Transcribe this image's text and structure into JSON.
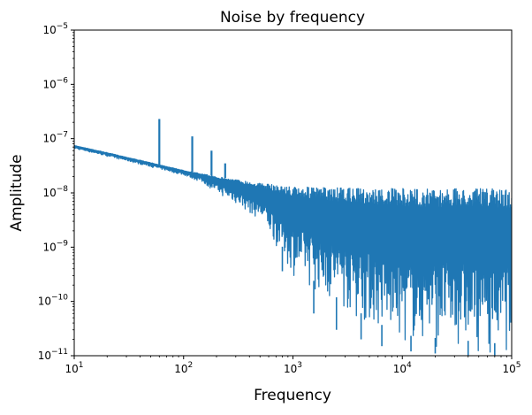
{
  "chart_data": {
    "type": "line",
    "title": "Noise by frequency",
    "xlabel": "Frequency",
    "ylabel": "Amplitude",
    "xscale": "log",
    "yscale": "log",
    "xlim": [
      10,
      100000
    ],
    "ylim": [
      1e-11,
      1e-05
    ],
    "grid": false,
    "legend": "none",
    "x_ticks": [
      {
        "value": 10,
        "base": "10",
        "exp": "1"
      },
      {
        "value": 100,
        "base": "10",
        "exp": "2"
      },
      {
        "value": 1000,
        "base": "10",
        "exp": "3"
      },
      {
        "value": 10000,
        "base": "10",
        "exp": "4"
      },
      {
        "value": 100000,
        "base": "10",
        "exp": "5"
      }
    ],
    "y_ticks": [
      {
        "value": 1e-11,
        "base": "10",
        "exp": "−11"
      },
      {
        "value": 1e-10,
        "base": "10",
        "exp": "−10"
      },
      {
        "value": 1e-09,
        "base": "10",
        "exp": "−9"
      },
      {
        "value": 1e-08,
        "base": "10",
        "exp": "−8"
      },
      {
        "value": 1e-07,
        "base": "10",
        "exp": "−7"
      },
      {
        "value": 1e-06,
        "base": "10",
        "exp": "−6"
      },
      {
        "value": 1e-05,
        "base": "10",
        "exp": "−5"
      }
    ],
    "series": [
      {
        "color": "#1f77b4",
        "envelope_upper": [
          [
            10,
            7.5e-08
          ],
          [
            20,
            5.5e-08
          ],
          [
            50,
            3.6e-08
          ],
          [
            100,
            2.6e-08
          ],
          [
            200,
            2e-08
          ],
          [
            500,
            1.5e-08
          ],
          [
            1000,
            1.3e-08
          ],
          [
            2000,
            1.25e-08
          ],
          [
            5000,
            1.2e-08
          ],
          [
            10000,
            1.2e-08
          ],
          [
            100000,
            1.2e-08
          ]
        ],
        "envelope_lower": [
          [
            10,
            6.5e-08
          ],
          [
            20,
            4.7e-08
          ],
          [
            50,
            3e-08
          ],
          [
            100,
            2.1e-08
          ],
          [
            150,
            1.5e-08
          ],
          [
            200,
            1e-08
          ],
          [
            300,
            6e-09
          ],
          [
            500,
            3e-09
          ],
          [
            700,
            1e-09
          ],
          [
            1000,
            3e-10
          ],
          [
            2000,
            1e-10
          ],
          [
            5000,
            3e-11
          ],
          [
            10000,
            1.5e-11
          ],
          [
            100000,
            1e-11
          ]
        ],
        "peaks": [
          {
            "x": 60,
            "y": 2.3e-07
          },
          {
            "x": 120,
            "y": 1.1e-07
          },
          {
            "x": 180,
            "y": 6e-08
          },
          {
            "x": 240,
            "y": 3.5e-08
          }
        ],
        "dips": [
          {
            "x": 800,
            "y": 3.6e-10
          },
          {
            "x": 1550,
            "y": 6e-11
          },
          {
            "x": 2500,
            "y": 3e-11
          },
          {
            "x": 4200,
            "y": 2e-11
          },
          {
            "x": 6500,
            "y": 1.5e-11
          },
          {
            "x": 12000,
            "y": 1.2e-11
          },
          {
            "x": 20000,
            "y": 1.1e-11
          },
          {
            "x": 40000,
            "y": 1e-11
          },
          {
            "x": 70000,
            "y": 1e-11
          }
        ]
      }
    ]
  }
}
